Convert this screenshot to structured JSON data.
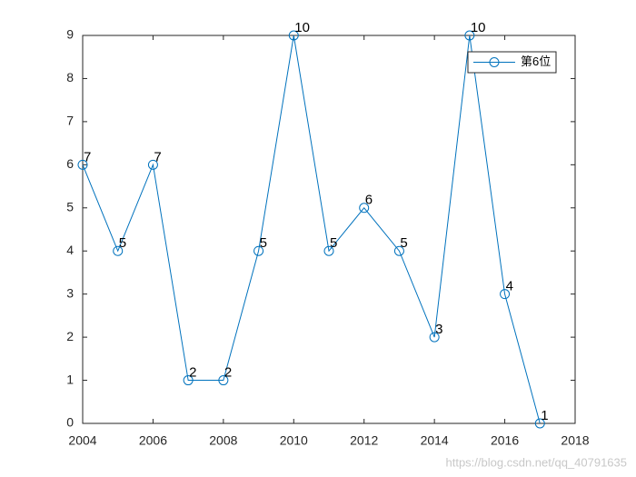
{
  "chart_data": {
    "type": "line",
    "x": [
      2004,
      2005,
      2006,
      2007,
      2008,
      2009,
      2010,
      2011,
      2012,
      2013,
      2014,
      2015,
      2016,
      2017
    ],
    "series": [
      {
        "name": "第6位",
        "color": "#0072BD",
        "values": [
          6,
          4,
          6,
          1,
          1,
          4,
          9,
          4,
          5,
          4,
          2,
          9,
          3,
          0
        ]
      }
    ],
    "annotations": [
      "7",
      "5",
      "7",
      "2",
      "2",
      "5",
      "10",
      "5",
      "6",
      "5",
      "3",
      "10",
      "4",
      "1"
    ],
    "xlim": [
      2004,
      2018
    ],
    "xticks": [
      2004,
      2006,
      2008,
      2010,
      2012,
      2014,
      2016,
      2018
    ],
    "ylim": [
      0,
      9
    ],
    "yticks": [
      0,
      1,
      2,
      3,
      4,
      5,
      6,
      7,
      8,
      9
    ],
    "legend": "upper right",
    "marker": "circle",
    "watermark": "https://blog.csdn.net/qq_40791635"
  }
}
